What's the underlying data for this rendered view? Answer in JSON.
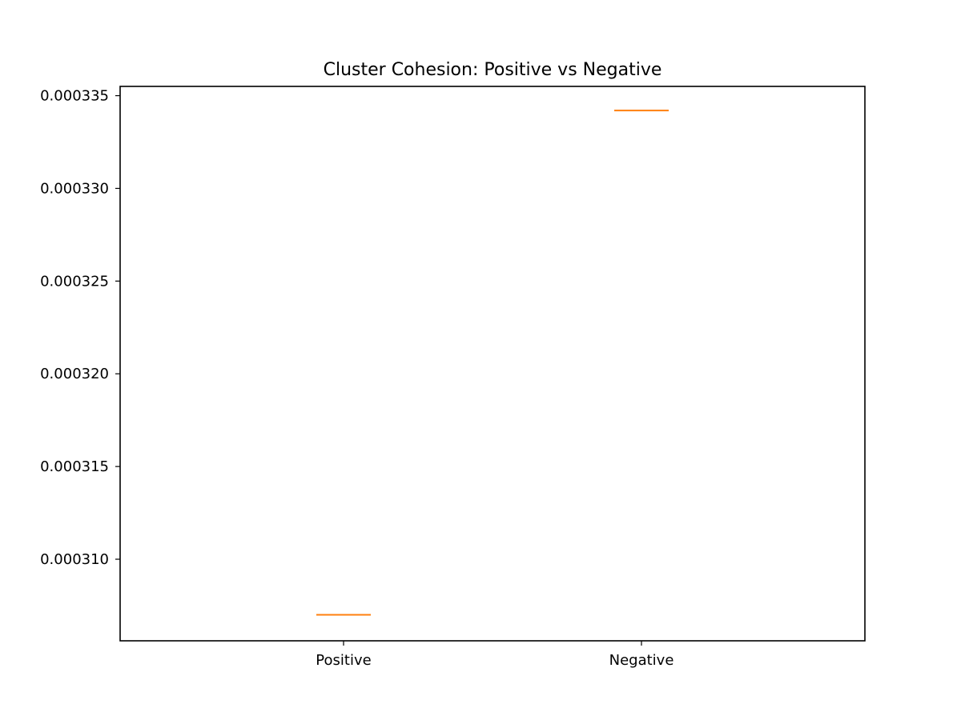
{
  "chart_data": {
    "type": "box",
    "title": "Cluster Cohesion: Positive vs Negative",
    "xlabel": "",
    "ylabel": "",
    "categories": [
      "Positive",
      "Negative"
    ],
    "values": [
      0.000307,
      0.0003342
    ],
    "ylim": [
      0.0003056,
      0.0003355
    ],
    "yticks": [
      0.00031,
      0.000315,
      0.00032,
      0.000325,
      0.00033,
      0.000335
    ],
    "ytick_labels": [
      "0.000310",
      "0.000315",
      "0.000320",
      "0.000325",
      "0.000330",
      "0.000335"
    ],
    "grid": false,
    "median_color": "#ff7f0e",
    "axis_color": "#000000"
  }
}
